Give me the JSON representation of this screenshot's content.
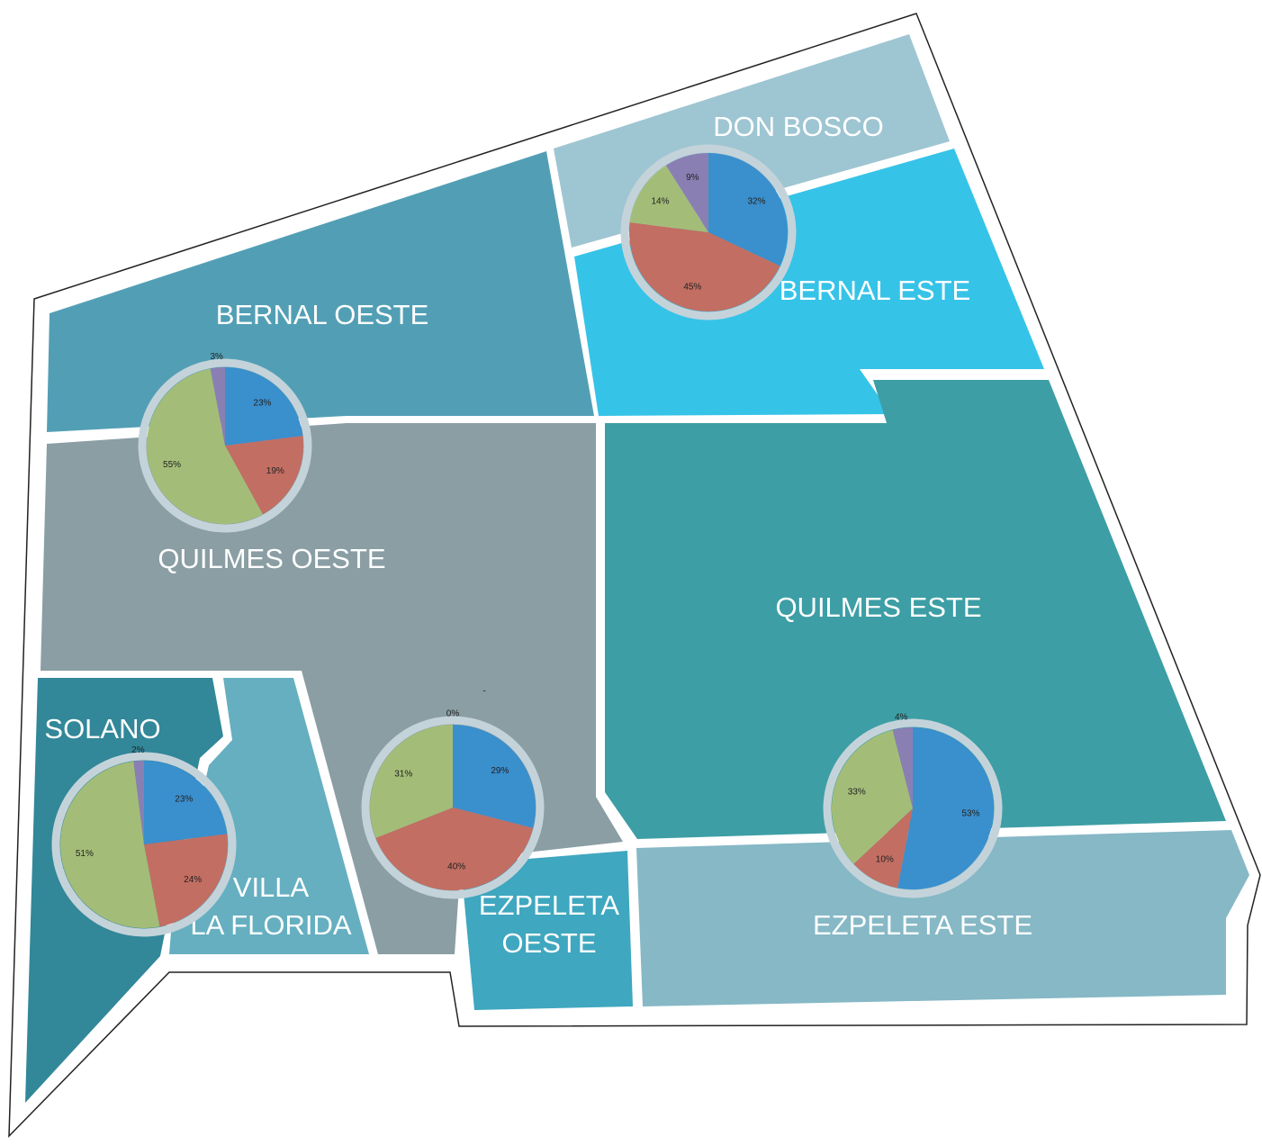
{
  "map": {
    "regions": [
      {
        "label": [
          "DON BOSCO"
        ]
      },
      {
        "label": [
          "BERNAL ESTE"
        ]
      },
      {
        "label": [
          "BERNAL OESTE"
        ]
      },
      {
        "label": [
          "QUILMES OESTE"
        ]
      },
      {
        "label": [
          "QUILMES ESTE"
        ]
      },
      {
        "label": [
          "EZPELETA ESTE"
        ]
      },
      {
        "label": [
          "EZPELETA",
          "OESTE"
        ]
      },
      {
        "label": [
          "VILLA",
          "LA FLORIDA"
        ]
      },
      {
        "label": [
          "SOLANO"
        ]
      }
    ],
    "annotations": [
      "-"
    ]
  },
  "chart_data": [
    {
      "type": "pie",
      "values": [
        32,
        45,
        14,
        9
      ],
      "value_labels": [
        "32%",
        "45%",
        "14%",
        "9%"
      ],
      "colors": [
        "#3a8fcd",
        "#c26e63",
        "#a3bd78",
        "#8a7fb3"
      ]
    },
    {
      "type": "pie",
      "values": [
        23,
        19,
        55,
        3
      ],
      "value_labels": [
        "23%",
        "19%",
        "55%",
        "3%"
      ],
      "colors": [
        "#3a8fcd",
        "#c26e63",
        "#a3bd78",
        "#8a7fb3"
      ]
    },
    {
      "type": "pie",
      "values": [
        23,
        24,
        51,
        2
      ],
      "value_labels": [
        "23%",
        "24%",
        "51%",
        "2%"
      ],
      "colors": [
        "#3a8fcd",
        "#c26e63",
        "#a3bd78",
        "#8a7fb3"
      ]
    },
    {
      "type": "pie",
      "values": [
        29,
        40,
        31,
        0
      ],
      "value_labels": [
        "29%",
        "40%",
        "31%",
        "0%"
      ],
      "colors": [
        "#3a8fcd",
        "#c26e63",
        "#a3bd78",
        "#8a7fb3"
      ]
    },
    {
      "type": "pie",
      "values": [
        53,
        10,
        33,
        4
      ],
      "value_labels": [
        "53%",
        "10%",
        "33%",
        "4%"
      ],
      "colors": [
        "#3a8fcd",
        "#c26e63",
        "#a3bd78",
        "#8a7fb3"
      ]
    }
  ]
}
